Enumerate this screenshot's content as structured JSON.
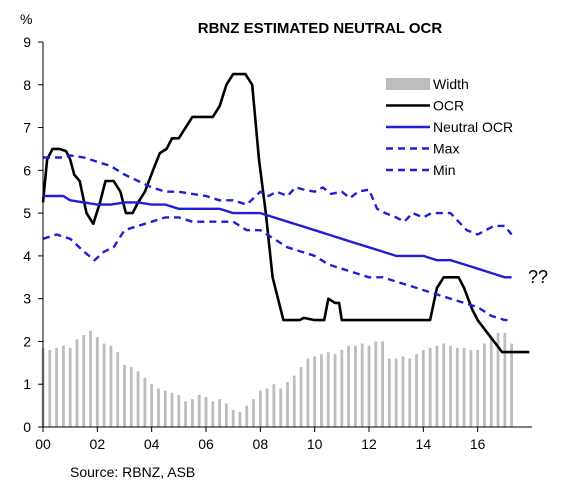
{
  "chart_data": {
    "type": "line",
    "title": "RBNZ ESTIMATED NEUTRAL OCR",
    "ylabel": "%",
    "source": "Source: RBNZ, ASB",
    "annotation": "??",
    "ylim": [
      0,
      9
    ],
    "xlim": [
      2000,
      2018
    ],
    "x_ticks": [
      2000,
      2002,
      2004,
      2006,
      2008,
      2010,
      2012,
      2014,
      2016
    ],
    "x_tick_labels": [
      "00",
      "02",
      "04",
      "06",
      "08",
      "10",
      "12",
      "14",
      "16"
    ],
    "y_ticks": [
      0,
      1,
      2,
      3,
      4,
      5,
      6,
      7,
      8,
      9
    ],
    "grid": false,
    "legend_position": "top-right",
    "colors": {
      "width": "#bdbdbd",
      "ocr": "#000000",
      "neutral": "#1f1fd6",
      "band": "#1f1fd6"
    },
    "width_bars": {
      "name": "Width",
      "style": "bar",
      "x": [
        2000,
        2000.25,
        2000.5,
        2000.75,
        2001,
        2001.25,
        2001.5,
        2001.75,
        2002,
        2002.25,
        2002.5,
        2002.75,
        2003,
        2003.25,
        2003.5,
        2003.75,
        2004,
        2004.25,
        2004.5,
        2004.75,
        2005,
        2005.25,
        2005.5,
        2005.75,
        2006,
        2006.25,
        2006.5,
        2006.75,
        2007,
        2007.25,
        2007.5,
        2007.75,
        2008,
        2008.25,
        2008.5,
        2008.75,
        2009,
        2009.25,
        2009.5,
        2009.75,
        2010,
        2010.25,
        2010.5,
        2010.75,
        2011,
        2011.25,
        2011.5,
        2011.75,
        2012,
        2012.25,
        2012.5,
        2012.75,
        2013,
        2013.25,
        2013.5,
        2013.75,
        2014,
        2014.25,
        2014.5,
        2014.75,
        2015,
        2015.25,
        2015.5,
        2015.75,
        2016,
        2016.25,
        2016.5,
        2016.75,
        2017,
        2017.25
      ],
      "values": [
        1.85,
        1.8,
        1.85,
        1.9,
        1.85,
        2.05,
        2.15,
        2.25,
        2.1,
        1.95,
        1.9,
        1.75,
        1.45,
        1.4,
        1.3,
        1.15,
        1.0,
        0.9,
        0.85,
        0.8,
        0.75,
        0.6,
        0.65,
        0.75,
        0.7,
        0.6,
        0.65,
        0.55,
        0.4,
        0.35,
        0.5,
        0.65,
        0.85,
        0.9,
        1.0,
        0.9,
        1.05,
        1.2,
        1.4,
        1.6,
        1.65,
        1.7,
        1.75,
        1.7,
        1.8,
        1.9,
        1.9,
        1.95,
        1.9,
        2.0,
        2.0,
        1.6,
        1.6,
        1.65,
        1.6,
        1.7,
        1.8,
        1.85,
        1.9,
        1.95,
        1.9,
        1.85,
        1.85,
        1.8,
        1.8,
        1.95,
        2.1,
        2.2,
        2.2,
        1.95
      ]
    },
    "series": [
      {
        "name": "OCR",
        "style": "solid",
        "x": [
          2000,
          2000.15,
          2000.35,
          2000.6,
          2000.85,
          2001,
          2001.15,
          2001.35,
          2001.6,
          2001.85,
          2002.1,
          2002.3,
          2002.6,
          2002.85,
          2003.05,
          2003.3,
          2003.5,
          2003.75,
          2004.05,
          2004.3,
          2004.55,
          2004.75,
          2005,
          2005.25,
          2005.5,
          2005.75,
          2006,
          2006.25,
          2006.5,
          2006.75,
          2007,
          2007.25,
          2007.45,
          2007.7,
          2007.95,
          2008.2,
          2008.45,
          2008.65,
          2008.85,
          2009,
          2009.15,
          2009.3,
          2009.45,
          2009.6,
          2010,
          2010.35,
          2010.5,
          2010.75,
          2010.9,
          2011,
          2011.15,
          2011.3,
          2012,
          2013,
          2013.8,
          2014,
          2014.25,
          2014.5,
          2014.75,
          2015,
          2015.3,
          2015.5,
          2015.8,
          2016,
          2016.3,
          2016.6,
          2016.9,
          2017.2,
          2017.6,
          2017.9
        ],
        "values": [
          5.25,
          6.25,
          6.5,
          6.5,
          6.45,
          6.25,
          5.9,
          5.75,
          5.0,
          4.75,
          5.25,
          5.75,
          5.75,
          5.5,
          5.0,
          5.0,
          5.25,
          5.5,
          6.0,
          6.4,
          6.5,
          6.75,
          6.75,
          7.0,
          7.25,
          7.25,
          7.25,
          7.25,
          7.5,
          8.0,
          8.25,
          8.25,
          8.25,
          8.0,
          6.25,
          5.0,
          3.5,
          3.0,
          2.5,
          2.5,
          2.5,
          2.5,
          2.5,
          2.55,
          2.5,
          2.5,
          3.0,
          2.9,
          2.9,
          2.5,
          2.5,
          2.5,
          2.5,
          2.5,
          2.5,
          2.5,
          2.5,
          3.25,
          3.5,
          3.5,
          3.5,
          3.25,
          2.75,
          2.5,
          2.25,
          2.0,
          1.75,
          1.75,
          1.75,
          1.75
        ]
      },
      {
        "name": "Neutral OCR",
        "style": "solid",
        "x": [
          2000,
          2000.75,
          2001,
          2001.5,
          2002,
          2002.5,
          2003,
          2003.5,
          2004,
          2004.5,
          2005,
          2005.5,
          2006,
          2006.5,
          2007,
          2007.5,
          2008,
          2008.5,
          2009,
          2009.5,
          2010,
          2010.5,
          2011,
          2011.5,
          2012,
          2012.5,
          2013,
          2013.5,
          2014,
          2014.5,
          2015,
          2015.5,
          2016,
          2016.5,
          2017,
          2017.25
        ],
        "values": [
          5.4,
          5.4,
          5.3,
          5.25,
          5.2,
          5.2,
          5.25,
          5.25,
          5.2,
          5.2,
          5.1,
          5.1,
          5.1,
          5.1,
          5.0,
          5.0,
          5.0,
          4.9,
          4.8,
          4.7,
          4.6,
          4.5,
          4.4,
          4.3,
          4.2,
          4.1,
          4.0,
          4.0,
          4.0,
          3.9,
          3.9,
          3.8,
          3.7,
          3.6,
          3.5,
          3.5
        ]
      },
      {
        "name": "Max",
        "style": "dashed",
        "x": [
          2000,
          2000.75,
          2001,
          2001.5,
          2002,
          2002.5,
          2003,
          2003.5,
          2004,
          2004.5,
          2005,
          2005.5,
          2006,
          2006.5,
          2007,
          2007.5,
          2008,
          2008.3,
          2008.6,
          2009,
          2009.3,
          2009.6,
          2010,
          2010.3,
          2010.6,
          2011,
          2011.3,
          2011.6,
          2012,
          2012.3,
          2012.6,
          2013,
          2013.3,
          2013.6,
          2014,
          2014.3,
          2014.6,
          2015,
          2015.3,
          2015.6,
          2016,
          2016.3,
          2016.6,
          2017,
          2017.25
        ],
        "values": [
          6.3,
          6.3,
          6.35,
          6.3,
          6.2,
          6.1,
          5.9,
          5.75,
          5.6,
          5.5,
          5.5,
          5.45,
          5.4,
          5.3,
          5.3,
          5.2,
          5.5,
          5.4,
          5.5,
          5.4,
          5.6,
          5.55,
          5.5,
          5.6,
          5.45,
          5.5,
          5.35,
          5.5,
          5.55,
          5.1,
          5.0,
          4.9,
          4.8,
          5.0,
          4.9,
          5.0,
          5.0,
          5.0,
          4.8,
          4.6,
          4.5,
          4.6,
          4.7,
          4.7,
          4.5
        ]
      },
      {
        "name": "Min",
        "style": "dashed",
        "x": [
          2000,
          2000.5,
          2001,
          2001.5,
          2001.9,
          2002.25,
          2002.6,
          2003,
          2003.5,
          2004,
          2004.5,
          2005,
          2005.5,
          2006,
          2006.5,
          2007,
          2007.5,
          2008,
          2008.5,
          2009,
          2009.5,
          2010,
          2010.5,
          2011,
          2011.5,
          2012,
          2012.5,
          2013,
          2013.5,
          2014,
          2014.5,
          2015,
          2015.5,
          2016,
          2016.5,
          2017,
          2017.25
        ],
        "values": [
          4.4,
          4.5,
          4.4,
          4.1,
          3.9,
          4.1,
          4.2,
          4.6,
          4.7,
          4.8,
          4.9,
          4.9,
          4.8,
          4.8,
          4.8,
          4.8,
          4.6,
          4.6,
          4.4,
          4.2,
          4.1,
          4.0,
          3.8,
          3.7,
          3.6,
          3.5,
          3.5,
          3.4,
          3.3,
          3.2,
          3.1,
          3.0,
          2.9,
          2.8,
          2.6,
          2.5,
          2.5
        ]
      }
    ]
  }
}
